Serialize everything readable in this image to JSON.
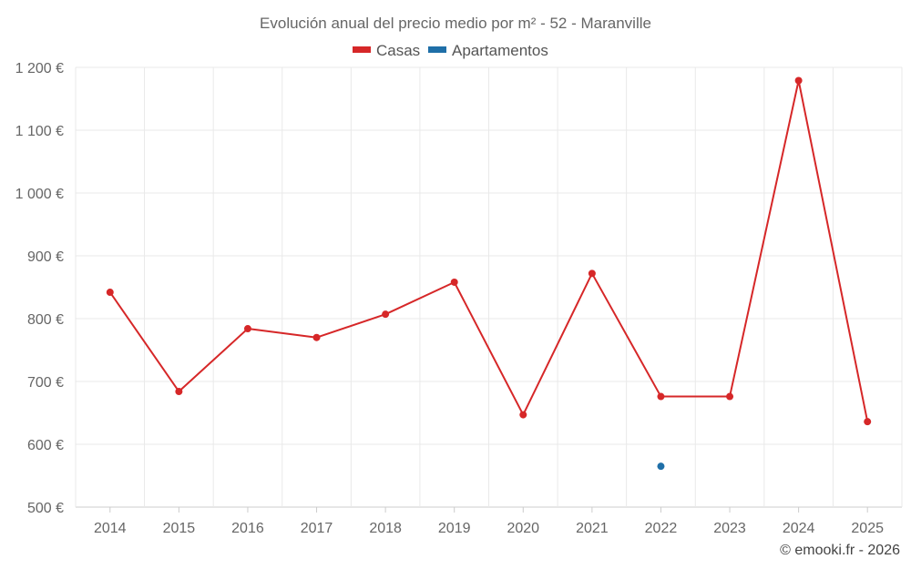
{
  "chart_data": {
    "type": "line",
    "title": "Evolución anual del precio medio por m² - 52 - Maranville",
    "categories": [
      "2014",
      "2015",
      "2016",
      "2017",
      "2018",
      "2019",
      "2020",
      "2021",
      "2022",
      "2023",
      "2024",
      "2025"
    ],
    "series": [
      {
        "name": "Casas",
        "color": "#d62728",
        "values": [
          842,
          684,
          784,
          770,
          807,
          858,
          647,
          872,
          676,
          676,
          1179,
          636
        ]
      },
      {
        "name": "Apartamentos",
        "color": "#1f6fa8",
        "values": [
          null,
          null,
          null,
          null,
          null,
          null,
          null,
          null,
          565,
          null,
          null,
          null
        ]
      }
    ],
    "ylim": [
      500,
      1200
    ],
    "yticks": [
      500,
      600,
      700,
      800,
      900,
      1000,
      1100,
      1200
    ],
    "ytick_labels": [
      "500 €",
      "600 €",
      "700 €",
      "800 €",
      "900 €",
      "1 000 €",
      "1 100 €",
      "1 200 €"
    ],
    "xlabel": "",
    "ylabel": "",
    "grid": true,
    "legend": "top-center"
  },
  "credit": "© emooki.fr - 2026"
}
